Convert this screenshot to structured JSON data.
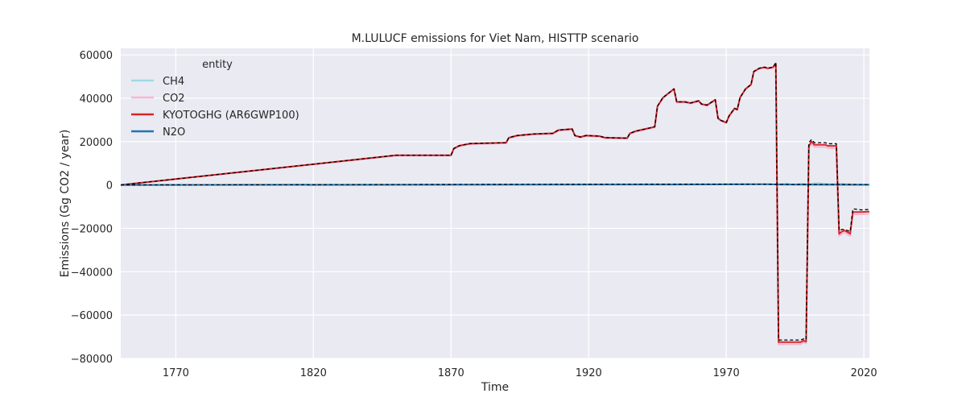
{
  "chart_data": {
    "type": "line",
    "title": "M.LULUCF emissions for Viet Nam, HISTTP scenario",
    "xlabel": "Time",
    "ylabel": "Emissions (Gg CO2 / year)",
    "xlim": [
      1750,
      2022
    ],
    "ylim": [
      -80000,
      63000
    ],
    "x_ticks": [
      1770,
      1820,
      1870,
      1920,
      1970,
      2020
    ],
    "y_ticks": [
      -80000,
      -60000,
      -40000,
      -20000,
      0,
      20000,
      40000,
      60000
    ],
    "grid": true,
    "legend": {
      "title": "entity",
      "placement": "top-left"
    },
    "series": [
      {
        "name": "CH4",
        "color": "#9edae5",
        "width": 2,
        "points": [
          [
            1750,
            0
          ],
          [
            1850,
            200
          ],
          [
            1900,
            300
          ],
          [
            1950,
            400
          ],
          [
            1970,
            500
          ],
          [
            1980,
            400
          ],
          [
            1988,
            300
          ],
          [
            1992,
            700
          ],
          [
            1994,
            200
          ],
          [
            1998,
            600
          ],
          [
            2000,
            200
          ],
          [
            2002,
            900
          ],
          [
            2005,
            700
          ],
          [
            2008,
            400
          ],
          [
            2012,
            600
          ],
          [
            2015,
            300
          ],
          [
            2022,
            200
          ]
        ]
      },
      {
        "name": "CO2",
        "color": "#f7b6d2",
        "width": 2,
        "points": [
          [
            1750,
            0
          ],
          [
            1850,
            13500
          ],
          [
            1870,
            13500
          ],
          [
            1871,
            16500
          ],
          [
            1873,
            17800
          ],
          [
            1877,
            18800
          ],
          [
            1890,
            19200
          ],
          [
            1891,
            21500
          ],
          [
            1894,
            22500
          ],
          [
            1900,
            23200
          ],
          [
            1907,
            23500
          ],
          [
            1909,
            25000
          ],
          [
            1914,
            25500
          ],
          [
            1915,
            22500
          ],
          [
            1917,
            21800
          ],
          [
            1919,
            22500
          ],
          [
            1924,
            22200
          ],
          [
            1926,
            21500
          ],
          [
            1934,
            21300
          ],
          [
            1935,
            23500
          ],
          [
            1937,
            24500
          ],
          [
            1944,
            26500
          ],
          [
            1945,
            36000
          ],
          [
            1947,
            40000
          ],
          [
            1951,
            44000
          ],
          [
            1952,
            38000
          ],
          [
            1955,
            38000
          ],
          [
            1957,
            37500
          ],
          [
            1960,
            38500
          ],
          [
            1961,
            37000
          ],
          [
            1963,
            36500
          ],
          [
            1966,
            39000
          ],
          [
            1967,
            30500
          ],
          [
            1968,
            29500
          ],
          [
            1970,
            28500
          ],
          [
            1971,
            31500
          ],
          [
            1973,
            35000
          ],
          [
            1974,
            34500
          ],
          [
            1975,
            40000
          ],
          [
            1977,
            44000
          ],
          [
            1979,
            46000
          ],
          [
            1980,
            52000
          ],
          [
            1982,
            53500
          ],
          [
            1984,
            54000
          ],
          [
            1985,
            53500
          ],
          [
            1987,
            54000
          ],
          [
            1988,
            55500
          ],
          [
            1989,
            -73500
          ],
          [
            1991,
            -73500
          ],
          [
            1997,
            -73500
          ],
          [
            1998,
            -72500
          ],
          [
            1999,
            -73000
          ],
          [
            2000,
            17000
          ],
          [
            2001,
            19000
          ],
          [
            2002,
            17500
          ],
          [
            2006,
            17500
          ],
          [
            2007,
            17000
          ],
          [
            2010,
            17000
          ],
          [
            2011,
            -23500
          ],
          [
            2012,
            -22500
          ],
          [
            2013,
            -22000
          ],
          [
            2015,
            -23500
          ],
          [
            2016,
            -13500
          ],
          [
            2019,
            -13500
          ],
          [
            2022,
            -13300
          ]
        ]
      },
      {
        "name": "KYOTOGHG (AR6GWP100)",
        "color": "#d62728",
        "width": 2,
        "points": [
          [
            1750,
            0
          ],
          [
            1850,
            13700
          ],
          [
            1870,
            13700
          ],
          [
            1871,
            16800
          ],
          [
            1873,
            18100
          ],
          [
            1877,
            19100
          ],
          [
            1890,
            19500
          ],
          [
            1891,
            21800
          ],
          [
            1894,
            22800
          ],
          [
            1900,
            23500
          ],
          [
            1907,
            23800
          ],
          [
            1909,
            25300
          ],
          [
            1914,
            25800
          ],
          [
            1915,
            22800
          ],
          [
            1917,
            22100
          ],
          [
            1919,
            22800
          ],
          [
            1924,
            22500
          ],
          [
            1926,
            21800
          ],
          [
            1934,
            21600
          ],
          [
            1935,
            23800
          ],
          [
            1937,
            24800
          ],
          [
            1944,
            26800
          ],
          [
            1945,
            36300
          ],
          [
            1947,
            40300
          ],
          [
            1951,
            44300
          ],
          [
            1952,
            38300
          ],
          [
            1955,
            38300
          ],
          [
            1957,
            37800
          ],
          [
            1960,
            38800
          ],
          [
            1961,
            37300
          ],
          [
            1963,
            36800
          ],
          [
            1966,
            39300
          ],
          [
            1967,
            30800
          ],
          [
            1968,
            29800
          ],
          [
            1970,
            28800
          ],
          [
            1971,
            31800
          ],
          [
            1973,
            35300
          ],
          [
            1974,
            34800
          ],
          [
            1975,
            40300
          ],
          [
            1977,
            44300
          ],
          [
            1979,
            46300
          ],
          [
            1980,
            52300
          ],
          [
            1982,
            53800
          ],
          [
            1984,
            54300
          ],
          [
            1985,
            53800
          ],
          [
            1987,
            54300
          ],
          [
            1988,
            56000
          ],
          [
            1989,
            -72500
          ],
          [
            1991,
            -72500
          ],
          [
            1997,
            -72500
          ],
          [
            1998,
            -71800
          ],
          [
            1999,
            -72200
          ],
          [
            2000,
            18000
          ],
          [
            2001,
            20000
          ],
          [
            2002,
            18500
          ],
          [
            2006,
            18500
          ],
          [
            2007,
            18000
          ],
          [
            2010,
            18000
          ],
          [
            2011,
            -22500
          ],
          [
            2012,
            -21500
          ],
          [
            2013,
            -21000
          ],
          [
            2015,
            -22500
          ],
          [
            2016,
            -12500
          ],
          [
            2019,
            -12500
          ],
          [
            2022,
            -12300
          ]
        ]
      },
      {
        "name": "N2O",
        "color": "#1f77b4",
        "width": 2,
        "points": [
          [
            1750,
            0
          ],
          [
            1850,
            100
          ],
          [
            1950,
            200
          ],
          [
            1985,
            300
          ],
          [
            1990,
            200
          ],
          [
            2022,
            100
          ]
        ]
      },
      {
        "name": "",
        "color": "#000000",
        "width": 1.3,
        "dash": "4,3",
        "points": [
          [
            1750,
            0
          ],
          [
            1850,
            13700
          ],
          [
            1870,
            13700
          ],
          [
            1871,
            16800
          ],
          [
            1873,
            18100
          ],
          [
            1877,
            19100
          ],
          [
            1890,
            19500
          ],
          [
            1891,
            21800
          ],
          [
            1894,
            22800
          ],
          [
            1900,
            23500
          ],
          [
            1907,
            23800
          ],
          [
            1909,
            25300
          ],
          [
            1914,
            25800
          ],
          [
            1915,
            22800
          ],
          [
            1917,
            22100
          ],
          [
            1919,
            22800
          ],
          [
            1924,
            22500
          ],
          [
            1926,
            21800
          ],
          [
            1934,
            21600
          ],
          [
            1935,
            23800
          ],
          [
            1937,
            24800
          ],
          [
            1944,
            26800
          ],
          [
            1945,
            36300
          ],
          [
            1947,
            40300
          ],
          [
            1951,
            44300
          ],
          [
            1952,
            38300
          ],
          [
            1955,
            38300
          ],
          [
            1957,
            37800
          ],
          [
            1960,
            38800
          ],
          [
            1961,
            37300
          ],
          [
            1963,
            36800
          ],
          [
            1966,
            39300
          ],
          [
            1967,
            30800
          ],
          [
            1968,
            29800
          ],
          [
            1970,
            28800
          ],
          [
            1971,
            31800
          ],
          [
            1973,
            35300
          ],
          [
            1974,
            34800
          ],
          [
            1975,
            40300
          ],
          [
            1977,
            44300
          ],
          [
            1979,
            46300
          ],
          [
            1980,
            52300
          ],
          [
            1982,
            53800
          ],
          [
            1984,
            54300
          ],
          [
            1985,
            53800
          ],
          [
            1987,
            54300
          ],
          [
            1988,
            56500
          ],
          [
            1989,
            -71500
          ],
          [
            1991,
            -71500
          ],
          [
            1997,
            -71500
          ],
          [
            1998,
            -71000
          ],
          [
            1999,
            -71300
          ],
          [
            2000,
            19500
          ],
          [
            2001,
            21000
          ],
          [
            2002,
            19500
          ],
          [
            2006,
            19500
          ],
          [
            2007,
            19000
          ],
          [
            2010,
            19000
          ],
          [
            2011,
            -21000
          ],
          [
            2012,
            -20500
          ],
          [
            2013,
            -20500
          ],
          [
            2015,
            -21500
          ],
          [
            2016,
            -11000
          ],
          [
            2019,
            -11500
          ],
          [
            2022,
            -11300
          ]
        ]
      },
      {
        "name": "",
        "color": "#000000",
        "width": 1.2,
        "dash": "4,3",
        "points": [
          [
            1750,
            0
          ],
          [
            1900,
            300
          ],
          [
            1970,
            400
          ],
          [
            1990,
            300
          ],
          [
            2022,
            200
          ]
        ]
      }
    ]
  }
}
